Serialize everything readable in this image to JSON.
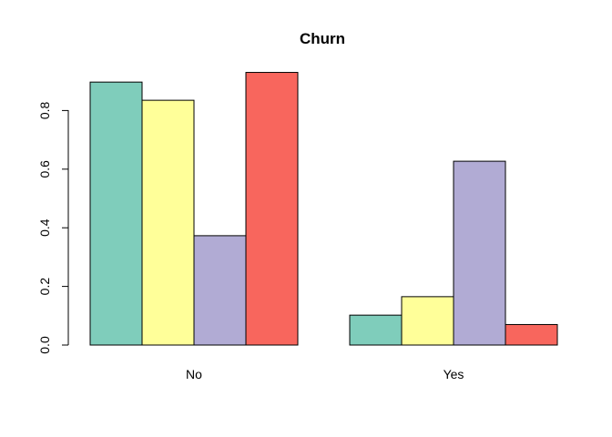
{
  "chart_data": {
    "type": "bar",
    "title": "Churn",
    "xlabel": "",
    "ylabel": "",
    "categories": [
      "No",
      "Yes"
    ],
    "series": [
      {
        "values": [
          0.897,
          0.102
        ],
        "color": "#7fcdbb"
      },
      {
        "values": [
          0.835,
          0.165
        ],
        "color": "#ffff99"
      },
      {
        "values": [
          0.373,
          0.627
        ],
        "color": "#b1abd4"
      },
      {
        "values": [
          0.93,
          0.07
        ],
        "color": "#f8665d"
      }
    ],
    "ylim": [
      0,
      0.93
    ],
    "yticks": [
      0.0,
      0.2,
      0.4,
      0.6,
      0.8
    ],
    "ytick_labels": [
      "0.0",
      "0.2",
      "0.4",
      "0.6",
      "0.8"
    ],
    "grid": false,
    "legend": "none"
  }
}
